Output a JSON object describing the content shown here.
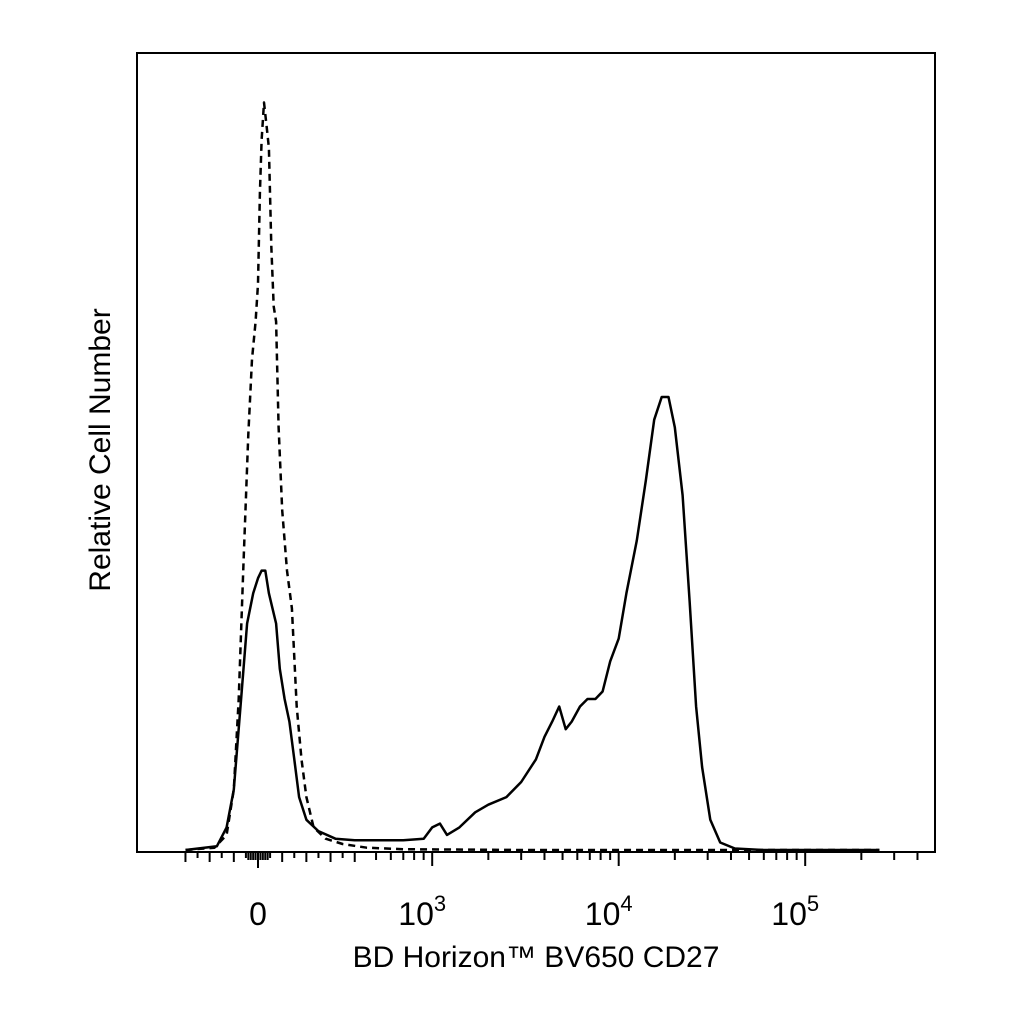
{
  "chart_data": {
    "type": "line",
    "title": "",
    "xlabel": "BD Horizon™ BV650 CD27",
    "ylabel": "Relative Cell Number",
    "x_scale": "biexponential",
    "xlim": [
      -300,
      250000
    ],
    "ylim": [
      0,
      100
    ],
    "grid": false,
    "legend": "none",
    "x_tick_labels": [
      {
        "value": 0,
        "base": "0",
        "exp": ""
      },
      {
        "value": 1000,
        "base": "10",
        "exp": "3"
      },
      {
        "value": 10000,
        "base": "10",
        "exp": "4"
      },
      {
        "value": 100000,
        "base": "10",
        "exp": "5"
      }
    ],
    "series": [
      {
        "style": "dashed",
        "color": "#000000",
        "points": [
          [
            -300,
            0
          ],
          [
            -180,
            0.3
          ],
          [
            -130,
            2
          ],
          [
            -100,
            8
          ],
          [
            -80,
            20
          ],
          [
            -60,
            38
          ],
          [
            -40,
            55
          ],
          [
            -25,
            65
          ],
          [
            -10,
            70
          ],
          [
            0,
            75
          ],
          [
            8,
            87
          ],
          [
            15,
            94
          ],
          [
            25,
            99
          ],
          [
            35,
            96
          ],
          [
            45,
            93
          ],
          [
            55,
            80
          ],
          [
            65,
            72
          ],
          [
            75,
            70
          ],
          [
            85,
            56
          ],
          [
            100,
            45
          ],
          [
            120,
            37
          ],
          [
            140,
            32
          ],
          [
            160,
            19
          ],
          [
            180,
            12
          ],
          [
            200,
            7
          ],
          [
            230,
            3
          ],
          [
            280,
            1.5
          ],
          [
            350,
            0.8
          ],
          [
            450,
            0.3
          ],
          [
            700,
            0.1
          ],
          [
            3000,
            0
          ],
          [
            250000,
            0
          ]
        ]
      },
      {
        "style": "solid",
        "color": "#000000",
        "points": [
          [
            -300,
            0
          ],
          [
            -170,
            0.5
          ],
          [
            -130,
            3
          ],
          [
            -100,
            8
          ],
          [
            -70,
            20
          ],
          [
            -45,
            30
          ],
          [
            -20,
            34
          ],
          [
            0,
            36
          ],
          [
            15,
            37
          ],
          [
            30,
            37
          ],
          [
            45,
            34
          ],
          [
            60,
            32
          ],
          [
            75,
            30
          ],
          [
            90,
            24
          ],
          [
            110,
            20
          ],
          [
            130,
            17
          ],
          [
            150,
            12
          ],
          [
            170,
            7
          ],
          [
            200,
            4
          ],
          [
            250,
            2.5
          ],
          [
            320,
            1.5
          ],
          [
            400,
            1.3
          ],
          [
            500,
            1.3
          ],
          [
            700,
            1.3
          ],
          [
            900,
            1.5
          ],
          [
            1000,
            3
          ],
          [
            1100,
            3.5
          ],
          [
            1200,
            2
          ],
          [
            1400,
            3
          ],
          [
            1700,
            5
          ],
          [
            2000,
            6
          ],
          [
            2500,
            7
          ],
          [
            3000,
            9
          ],
          [
            3600,
            12
          ],
          [
            4000,
            15
          ],
          [
            4400,
            17
          ],
          [
            4800,
            19
          ],
          [
            5200,
            16
          ],
          [
            5600,
            17
          ],
          [
            6200,
            19
          ],
          [
            6800,
            20
          ],
          [
            7500,
            20
          ],
          [
            8200,
            21
          ],
          [
            9000,
            25
          ],
          [
            10000,
            28
          ],
          [
            11000,
            34
          ],
          [
            12500,
            41
          ],
          [
            14000,
            49
          ],
          [
            15500,
            57
          ],
          [
            17000,
            60
          ],
          [
            18500,
            60
          ],
          [
            20000,
            56
          ],
          [
            22000,
            47
          ],
          [
            24000,
            33
          ],
          [
            26000,
            19
          ],
          [
            28000,
            11
          ],
          [
            31000,
            4
          ],
          [
            35000,
            1
          ],
          [
            42000,
            0.2
          ],
          [
            60000,
            0
          ],
          [
            250000,
            0
          ]
        ]
      }
    ]
  }
}
